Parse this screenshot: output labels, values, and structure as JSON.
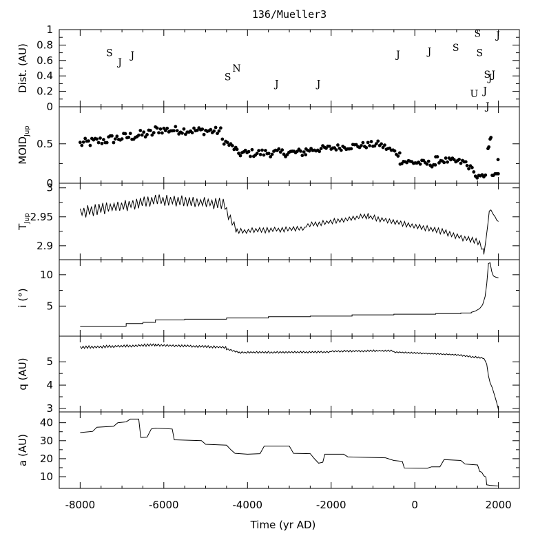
{
  "chart_data": {
    "type": "line",
    "title": "136/Mueller3",
    "xlabel": "Time (yr AD)",
    "xlim": [
      -8500,
      2500
    ],
    "xticks": [
      -8000,
      -6000,
      -4000,
      -2000,
      0,
      2000
    ],
    "xtick_labels": [
      "-8000",
      "-6000",
      "-4000",
      "-2000",
      "0",
      "2000"
    ],
    "panels": [
      {
        "id": "dist",
        "type": "scatter",
        "ylabel": "Dist. (AU)",
        "ylim": [
          0,
          1
        ],
        "yticks": [
          0,
          0.2,
          0.4,
          0.6,
          0.8,
          1
        ],
        "ytick_labels": [
          "0",
          "0.2",
          "0.4",
          "0.6",
          "0.8",
          "1"
        ],
        "annotations": [
          {
            "text": "S",
            "x": -7300,
            "y": 0.7
          },
          {
            "text": "J",
            "x": -7050,
            "y": 0.58
          },
          {
            "text": "J",
            "x": -6750,
            "y": 0.67
          },
          {
            "text": "S",
            "x": -4470,
            "y": 0.39
          },
          {
            "text": "N",
            "x": -4260,
            "y": 0.5
          },
          {
            "text": "J",
            "x": -3300,
            "y": 0.3
          },
          {
            "text": "J",
            "x": -2300,
            "y": 0.3
          },
          {
            "text": "J",
            "x": -400,
            "y": 0.68
          },
          {
            "text": "J",
            "x": 350,
            "y": 0.72
          },
          {
            "text": "S",
            "x": 980,
            "y": 0.77
          },
          {
            "text": "S",
            "x": 1500,
            "y": 0.95
          },
          {
            "text": "S",
            "x": 1550,
            "y": 0.7
          },
          {
            "text": "J",
            "x": 1990,
            "y": 0.93
          },
          {
            "text": "U",
            "x": 1420,
            "y": 0.17
          },
          {
            "text": "J",
            "x": 1680,
            "y": 0.21
          },
          {
            "text": "S",
            "x": 1730,
            "y": 0.42
          },
          {
            "text": "J",
            "x": 1800,
            "y": 0.38
          },
          {
            "text": "J",
            "x": 1880,
            "y": 0.42
          },
          {
            "text": "J",
            "x": 1740,
            "y": 0.01
          }
        ]
      },
      {
        "id": "moid",
        "type": "scatter",
        "ylabel": "MOID",
        "ylabel_sub": "Jup",
        "ylim": [
          0,
          0.97
        ],
        "yticks": [
          0,
          0.5
        ],
        "ytick_labels": [
          "0",
          "0.5"
        ],
        "segments": [
          {
            "x0": -8000,
            "x1": -6200,
            "y0": 0.5,
            "y1": 0.64,
            "amp": 0.06
          },
          {
            "x0": -6200,
            "x1": -4600,
            "y0": 0.68,
            "y1": 0.66,
            "amp": 0.05
          },
          {
            "x0": -4600,
            "x1": -4250,
            "y0": 0.55,
            "y1": 0.42,
            "amp": 0.04
          },
          {
            "x0": -4250,
            "x1": -2600,
            "y0": 0.38,
            "y1": 0.39,
            "amp": 0.05
          },
          {
            "x0": -2600,
            "x1": -800,
            "y0": 0.42,
            "y1": 0.5,
            "amp": 0.04
          },
          {
            "x0": -800,
            "x1": -350,
            "y0": 0.48,
            "y1": 0.36,
            "amp": 0.04
          },
          {
            "x0": -350,
            "x1": 500,
            "y0": 0.28,
            "y1": 0.24,
            "amp": 0.04
          },
          {
            "x0": 500,
            "x1": 1250,
            "y0": 0.3,
            "y1": 0.26,
            "amp": 0.04
          },
          {
            "x0": 1250,
            "x1": 1450,
            "y0": 0.22,
            "y1": 0.16,
            "amp": 0.03
          },
          {
            "x0": 1450,
            "x1": 1720,
            "y0": 0.08,
            "y1": 0.08,
            "amp": 0.03
          }
        ],
        "points": [
          [
            1750,
            0.44
          ],
          [
            1770,
            0.46
          ],
          [
            1800,
            0.56
          ],
          [
            1820,
            0.58
          ],
          [
            1850,
            0.1
          ],
          [
            1880,
            0.1
          ],
          [
            1920,
            0.12
          ],
          [
            1960,
            0.12
          ],
          [
            1990,
            0.3
          ],
          [
            1995,
            0.12
          ]
        ]
      },
      {
        "id": "tjup",
        "type": "line",
        "ylabel": "T",
        "ylabel_sub": "Jup",
        "ylim": [
          2.876,
          3.008
        ],
        "yticks": [
          2.9,
          2.95,
          3
        ],
        "ytick_labels": [
          "2.9",
          "2.95",
          "3"
        ],
        "segments": [
          {
            "x0": -8000,
            "x1": -6200,
            "y0": 2.958,
            "y1": 2.978,
            "amp": 0.011
          },
          {
            "x0": -6200,
            "x1": -4500,
            "y0": 2.98,
            "y1": 2.972,
            "amp": 0.01
          },
          {
            "x0": -4500,
            "x1": -4250,
            "y0": 2.958,
            "y1": 2.925,
            "amp": 0.008
          },
          {
            "x0": -4250,
            "x1": -2600,
            "y0": 2.925,
            "y1": 2.93,
            "amp": 0.005
          },
          {
            "x0": -2600,
            "x1": -1100,
            "y0": 2.935,
            "y1": 2.952,
            "amp": 0.005
          },
          {
            "x0": -1100,
            "x1": 700,
            "y0": 2.95,
            "y1": 2.924,
            "amp": 0.005
          },
          {
            "x0": 700,
            "x1": 1550,
            "y0": 2.924,
            "y1": 2.905,
            "amp": 0.006
          },
          {
            "x0": 1550,
            "x1": 1650,
            "y0": 2.905,
            "y1": 2.89,
            "amp": 0.006
          }
        ],
        "tail": [
          [
            1650,
            2.885
          ],
          [
            1700,
            2.91
          ],
          [
            1750,
            2.94
          ],
          [
            1780,
            2.96
          ],
          [
            1820,
            2.962
          ],
          [
            1870,
            2.955
          ],
          [
            1920,
            2.95
          ],
          [
            1960,
            2.944
          ],
          [
            2000,
            2.942
          ]
        ]
      },
      {
        "id": "incl",
        "type": "line",
        "ylabel": "i (°)",
        "ylim": [
          0.2,
          12.4
        ],
        "yticks": [
          5,
          10
        ],
        "ytick_labels": [
          "5",
          "10"
        ],
        "steps": [
          [
            -8000,
            1.8
          ],
          [
            -7000,
            1.8
          ],
          [
            -6900,
            2.2
          ],
          [
            -6500,
            2.4
          ],
          [
            -6200,
            2.8
          ],
          [
            -5500,
            2.9
          ],
          [
            -4500,
            3.1
          ],
          [
            -3500,
            3.3
          ],
          [
            -2500,
            3.4
          ],
          [
            -1500,
            3.6
          ],
          [
            -500,
            3.7
          ],
          [
            500,
            3.8
          ],
          [
            1100,
            3.9
          ],
          [
            1350,
            4.0
          ]
        ],
        "tail": [
          [
            1450,
            4.2
          ],
          [
            1550,
            4.6
          ],
          [
            1620,
            5.2
          ],
          [
            1680,
            6.5
          ],
          [
            1720,
            8.5
          ],
          [
            1760,
            11.8
          ],
          [
            1800,
            11.9
          ],
          [
            1840,
            10.5
          ],
          [
            1880,
            9.8
          ],
          [
            1940,
            9.6
          ],
          [
            2000,
            9.5
          ]
        ]
      },
      {
        "id": "q",
        "type": "line",
        "ylabel": "q (AU)",
        "ylim": [
          2.85,
          6.1
        ],
        "yticks": [
          3,
          4,
          5
        ],
        "ytick_labels": [
          "3",
          "4",
          "5"
        ],
        "segments": [
          {
            "x0": -8000,
            "x1": -6200,
            "y0": 5.62,
            "y1": 5.72,
            "amp": 0.06
          },
          {
            "x0": -6200,
            "x1": -4500,
            "y0": 5.72,
            "y1": 5.62,
            "amp": 0.05
          },
          {
            "x0": -4500,
            "x1": -4200,
            "y0": 5.55,
            "y1": 5.4,
            "amp": 0.04
          },
          {
            "x0": -4200,
            "x1": -2000,
            "y0": 5.4,
            "y1": 5.42,
            "amp": 0.04
          },
          {
            "x0": -2000,
            "x1": -500,
            "y0": 5.45,
            "y1": 5.48,
            "amp": 0.04
          },
          {
            "x0": -500,
            "x1": 1000,
            "y0": 5.42,
            "y1": 5.3,
            "amp": 0.03
          },
          {
            "x0": 1000,
            "x1": 1650,
            "y0": 5.3,
            "y1": 5.15,
            "amp": 0.04
          }
        ],
        "tail": [
          [
            1650,
            5.15
          ],
          [
            1680,
            5.05
          ],
          [
            1720,
            4.9
          ],
          [
            1760,
            4.4
          ],
          [
            1800,
            4.1
          ],
          [
            1850,
            3.9
          ],
          [
            1900,
            3.6
          ],
          [
            1950,
            3.3
          ],
          [
            2000,
            2.95
          ]
        ]
      },
      {
        "id": "a",
        "type": "line",
        "ylabel": "a (AU)",
        "ylim": [
          3.5,
          46
        ],
        "yticks": [
          10,
          20,
          30,
          40
        ],
        "ytick_labels": [
          "10",
          "20",
          "30",
          "40"
        ],
        "points": [
          [
            -8000,
            34.5
          ],
          [
            -7700,
            35.2
          ],
          [
            -7600,
            37.5
          ],
          [
            -7200,
            38
          ],
          [
            -7100,
            40
          ],
          [
            -6900,
            40.5
          ],
          [
            -6800,
            42
          ],
          [
            -6600,
            42
          ],
          [
            -6550,
            31.8
          ],
          [
            -6400,
            32
          ],
          [
            -6300,
            36.5
          ],
          [
            -6200,
            37
          ],
          [
            -5800,
            36.5
          ],
          [
            -5750,
            30.5
          ],
          [
            -5100,
            30
          ],
          [
            -5000,
            28
          ],
          [
            -4500,
            27.5
          ],
          [
            -4400,
            25
          ],
          [
            -4300,
            23
          ],
          [
            -4000,
            22.5
          ],
          [
            -3700,
            22.8
          ],
          [
            -3600,
            27
          ],
          [
            -3000,
            27
          ],
          [
            -2900,
            23
          ],
          [
            -2500,
            22.8
          ],
          [
            -2400,
            20
          ],
          [
            -2300,
            17.5
          ],
          [
            -2200,
            18
          ],
          [
            -2150,
            22.5
          ],
          [
            -1700,
            22.5
          ],
          [
            -1600,
            21
          ],
          [
            -700,
            20.5
          ],
          [
            -500,
            19
          ],
          [
            -300,
            18.5
          ],
          [
            -250,
            14.8
          ],
          [
            300,
            14.7
          ],
          [
            400,
            15.5
          ],
          [
            600,
            15.5
          ],
          [
            700,
            19.5
          ],
          [
            1100,
            19
          ],
          [
            1200,
            17
          ],
          [
            1500,
            16.5
          ],
          [
            1550,
            13
          ],
          [
            1600,
            12.5
          ],
          [
            1650,
            10.5
          ],
          [
            1700,
            9.8
          ],
          [
            1720,
            5.5
          ],
          [
            1800,
            5.2
          ],
          [
            1900,
            5
          ],
          [
            2000,
            4.8
          ]
        ]
      }
    ]
  }
}
